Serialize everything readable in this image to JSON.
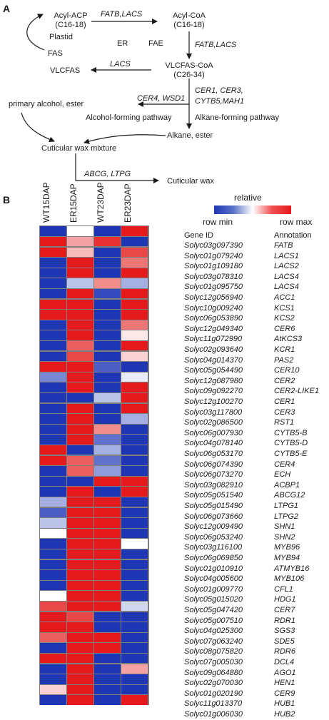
{
  "panel_a": {
    "label": "A",
    "nodes": {
      "acyl_acp": "Acyl-ACP",
      "acyl_acp_len": "(C16-18)",
      "plastid": "Plastid",
      "fas": "FAS",
      "acyl_coa": "Acyl-CoA",
      "acyl_coa_len": "(C16-18)",
      "er": "ER",
      "fae": "FAE",
      "vlcfas": "VLCFAS",
      "vlcfas_coa": "VLCFAS-CoA",
      "vlcfas_coa_len": "(C26-34)",
      "primary_alcohol": "primary alcohol, ester",
      "alcohol_pathway": "Alcohol-forming pathway",
      "alkane_pathway": "Alkane-forming pathway",
      "alkane": "Alkane, ester",
      "wax_mixture": "Cuticular wax mixture",
      "cuticular_wax": "Cuticular wax"
    },
    "enzymes": {
      "top": "FATB,LACS",
      "right": "FATB,LACS",
      "lacs": "LACS",
      "cer_line1": "CER1, CER3,",
      "cer_line2": "CYTB5,MAH1",
      "cer4": "CER4, WSD1",
      "abcg": "ABCG, LTPG"
    }
  },
  "panel_b": {
    "label": "B",
    "legend": {
      "title": "relative",
      "min_label": "row min",
      "max_label": "row max",
      "low_color": "#1f36b4",
      "mid_color": "#ffffff",
      "high_color": "#e41a1c"
    },
    "header_gene": "Gene ID",
    "header_annotation": "Annotation",
    "columns": [
      "WT15DAP",
      "ER15DAP",
      "WT23DAP",
      "ER23DAP"
    ]
  },
  "chart_data": {
    "type": "heatmap",
    "columns": [
      "WT15DAP",
      "ER15DAP",
      "WT23DAP",
      "ER23DAP"
    ],
    "value_scale": "relative, row min (0) to row max (1)",
    "rows": [
      {
        "gene": "Solyc03g097390",
        "annotation": "FATB",
        "values": [
          0.0,
          0.5,
          0.0,
          1.0
        ]
      },
      {
        "gene": "Solyc01g079240",
        "annotation": "LACS1",
        "values": [
          1.0,
          0.7,
          0.95,
          0.0
        ]
      },
      {
        "gene": "Solyc01g109180",
        "annotation": "LACS2",
        "values": [
          1.0,
          0.65,
          0.0,
          0.9
        ]
      },
      {
        "gene": "Solyc03g078310",
        "annotation": "LACS4",
        "values": [
          0.0,
          1.0,
          0.0,
          0.8
        ]
      },
      {
        "gene": "Solyc01g095750",
        "annotation": "LACS4",
        "values": [
          0.0,
          1.0,
          0.0,
          1.0
        ]
      },
      {
        "gene": "Solyc12g056940",
        "annotation": "ACC1",
        "values": [
          0.0,
          0.35,
          0.75,
          0.3
        ]
      },
      {
        "gene": "Solyc10g009240",
        "annotation": "KCS1",
        "values": [
          0.0,
          1.0,
          0.05,
          1.0
        ]
      },
      {
        "gene": "Solyc06g053890",
        "annotation": "KCS2",
        "values": [
          1.0,
          1.0,
          0.0,
          1.0
        ]
      },
      {
        "gene": "Solyc12g049340",
        "annotation": "CER6",
        "values": [
          1.0,
          1.0,
          0.0,
          1.0
        ]
      },
      {
        "gene": "Solyc11g072990",
        "annotation": "AtKCS3",
        "values": [
          0.0,
          1.0,
          0.0,
          0.8
        ]
      },
      {
        "gene": "Solyc02g093640",
        "annotation": "KCR1",
        "values": [
          0.0,
          1.0,
          0.0,
          0.55
        ]
      },
      {
        "gene": "Solyc04g014370",
        "annotation": "PAS2",
        "values": [
          0.0,
          0.85,
          0.0,
          1.0
        ]
      },
      {
        "gene": "Solyc05g054490",
        "annotation": "CER10",
        "values": [
          0.0,
          0.9,
          0.0,
          0.6
        ]
      },
      {
        "gene": "Solyc12g087980",
        "annotation": "CER2",
        "values": [
          1.0,
          1.0,
          0.1,
          0.0
        ]
      },
      {
        "gene": "Solyc09g092270",
        "annotation": "CER2-LIKE1",
        "values": [
          0.2,
          1.0,
          0.0,
          0.45
        ]
      },
      {
        "gene": "Solyc12g100270",
        "annotation": "CER1",
        "values": [
          0.0,
          1.0,
          0.0,
          1.0
        ]
      },
      {
        "gene": "Solyc03g117800",
        "annotation": "CER3",
        "values": [
          0.0,
          0.0,
          0.35,
          1.0
        ]
      },
      {
        "gene": "Solyc02g086500",
        "annotation": "RST1",
        "values": [
          0.0,
          1.0,
          0.0,
          1.0
        ]
      },
      {
        "gene": "Solyc06g007930",
        "annotation": "CYTB5-B",
        "values": [
          0.0,
          1.0,
          0.0,
          0.3
        ]
      },
      {
        "gene": "Solyc04g078140",
        "annotation": "CYTB5-D",
        "values": [
          0.0,
          1.0,
          0.75,
          0.0
        ]
      },
      {
        "gene": "Solyc06g053170",
        "annotation": "CYTB5-E",
        "values": [
          0.0,
          1.0,
          0.15,
          0.0
        ]
      },
      {
        "gene": "Solyc06g074390",
        "annotation": "CER4",
        "values": [
          1.0,
          0.0,
          0.3,
          0.0
        ]
      },
      {
        "gene": "Solyc06g073270",
        "annotation": "ECH",
        "values": [
          1.0,
          0.85,
          0.15,
          0.0
        ]
      },
      {
        "gene": "Solyc03g082910",
        "annotation": "ACBP1",
        "values": [
          0.0,
          0.85,
          0.25,
          0.0
        ]
      },
      {
        "gene": "Solyc05g051540",
        "annotation": "ABCG12",
        "values": [
          0.0,
          0.0,
          1.0,
          1.0
        ]
      },
      {
        "gene": "Solyc05g015490",
        "annotation": "LTPG1",
        "values": [
          0.0,
          1.0,
          0.0,
          1.0
        ]
      },
      {
        "gene": "Solyc06g073660",
        "annotation": "LTPG2",
        "values": [
          0.3,
          1.0,
          1.0,
          0.0
        ]
      },
      {
        "gene": "Solyc12g009490",
        "annotation": "SHN1",
        "values": [
          0.1,
          1.0,
          1.0,
          0.0
        ]
      },
      {
        "gene": "Solyc06g053240",
        "annotation": "SHN2",
        "values": [
          0.35,
          1.0,
          1.0,
          0.0
        ]
      },
      {
        "gene": "Solyc03g116100",
        "annotation": "MYB96",
        "values": [
          0.5,
          1.0,
          1.0,
          0.0
        ]
      },
      {
        "gene": "Solyc06g069850",
        "annotation": "MYB94",
        "values": [
          0.0,
          1.0,
          1.0,
          0.5
        ]
      },
      {
        "gene": "Solyc01g010910",
        "annotation": "ATMYB16",
        "values": [
          0.0,
          1.0,
          1.0,
          0.0
        ]
      },
      {
        "gene": "Solyc04g005600",
        "annotation": "MYB106",
        "values": [
          0.0,
          1.0,
          1.0,
          0.0
        ]
      },
      {
        "gene": "Solyc01g009770",
        "annotation": "CFL1",
        "values": [
          0.0,
          1.0,
          1.0,
          0.0
        ]
      },
      {
        "gene": "Solyc05g015020",
        "annotation": "HDG1",
        "values": [
          0.0,
          1.0,
          1.0,
          0.0
        ]
      },
      {
        "gene": "Solyc05g047420",
        "annotation": "CER7",
        "values": [
          0.5,
          1.0,
          1.0,
          0.0
        ]
      },
      {
        "gene": "Solyc05g007510",
        "annotation": "RDR1",
        "values": [
          0.9,
          1.0,
          1.0,
          0.4
        ]
      },
      {
        "gene": "Solyc04g025300",
        "annotation": "SGS3",
        "values": [
          1.0,
          0.9,
          0.0,
          0.0
        ]
      },
      {
        "gene": "Solyc07g063240",
        "annotation": "SDE5",
        "values": [
          1.0,
          1.0,
          0.0,
          0.0
        ]
      },
      {
        "gene": "Solyc08g075820",
        "annotation": "RDR6",
        "values": [
          0.85,
          1.0,
          1.0,
          0.0
        ]
      },
      {
        "gene": "Solyc07g005030",
        "annotation": "DCL4",
        "values": [
          0.0,
          1.0,
          1.0,
          0.0
        ]
      },
      {
        "gene": "Solyc09g064880",
        "annotation": "AGO1",
        "values": [
          1.0,
          1.0,
          0.0,
          0.0
        ]
      },
      {
        "gene": "Solyc02g070030",
        "annotation": "HEN1",
        "values": [
          0.0,
          1.0,
          0.0,
          0.7
        ]
      },
      {
        "gene": "Solyc01g020190",
        "annotation": "CER9",
        "values": [
          0.0,
          1.0,
          0.0,
          0.0
        ]
      },
      {
        "gene": "Solyc11g013370",
        "annotation": "HUB1",
        "values": [
          0.6,
          1.0,
          0.0,
          0.0
        ]
      },
      {
        "gene": "Solyc01g006030",
        "annotation": "HUB2",
        "values": [
          0.0,
          1.0,
          0.0,
          1.0
        ]
      }
    ]
  }
}
